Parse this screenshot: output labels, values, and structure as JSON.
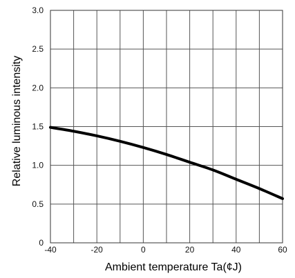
{
  "chart_data": {
    "type": "line",
    "title": "",
    "xlabel": "Ambient temperature Ta(¢J)",
    "ylabel": "Relative luminous intensity",
    "xlim": [
      -40,
      60
    ],
    "ylim": [
      0,
      3.0
    ],
    "grid": true,
    "x_grid_step": 10,
    "y_grid_step": 0.5,
    "x_tick_labels": [
      "-40",
      "-20",
      "0",
      "20",
      "40",
      "60"
    ],
    "x_tick_values": [
      -40,
      -20,
      0,
      20,
      40,
      60
    ],
    "y_tick_labels": [
      "0",
      "0.5",
      "1.0",
      "1.5",
      "2.0",
      "2.5",
      "3.0"
    ],
    "y_tick_values": [
      0,
      0.5,
      1.0,
      1.5,
      2.0,
      2.5,
      3.0
    ],
    "series": [
      {
        "x": [
          -40,
          -30,
          -20,
          -10,
          0,
          10,
          20,
          30,
          40,
          50,
          60
        ],
        "y": [
          1.49,
          1.44,
          1.38,
          1.31,
          1.23,
          1.14,
          1.04,
          0.94,
          0.82,
          0.7,
          0.57
        ],
        "color": "#000000"
      }
    ],
    "colors": {
      "grid": "#555555",
      "frame": "#333333",
      "line": "#000000"
    }
  }
}
